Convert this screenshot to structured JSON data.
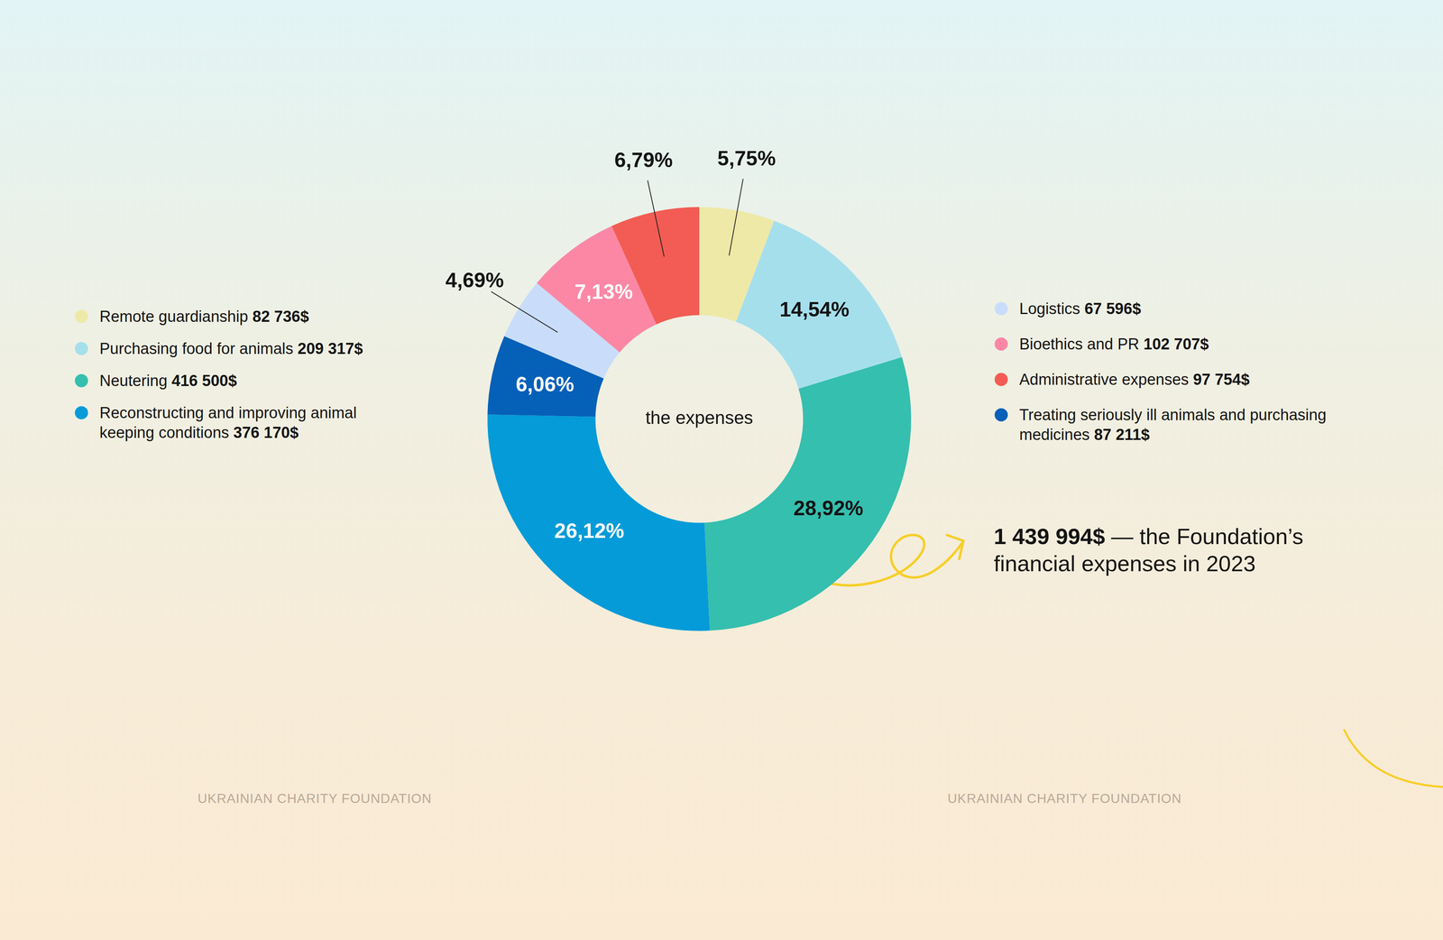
{
  "chart_data": {
    "type": "doughnut",
    "center_text": "the expenses",
    "categories": [
      "Remote guardianship",
      "Purchasing food for animals",
      "Neutering",
      "Reconstructing and improving animal keeping conditions",
      "Treating seriously ill animals and purchasing medicines",
      "Logistics",
      "Bioethics and PR",
      "Administrative expenses"
    ],
    "values": [
      5.75,
      14.54,
      28.92,
      26.12,
      6.06,
      4.69,
      7.13,
      6.79
    ],
    "value_labels": [
      "5,75%",
      "14,54%",
      "28,92%",
      "26,12%",
      "6,06%",
      "4,69%",
      "7,13%",
      "6,79%"
    ],
    "amounts": [
      82736,
      209317,
      416500,
      376170,
      87211,
      67596,
      102707,
      97754
    ],
    "amount_labels": [
      "82 736$",
      "209 317$",
      "416 500$",
      "376 170$",
      "87 211$",
      "67 596$",
      "102 707$",
      "97 754$"
    ],
    "colors": [
      "#eee9a7",
      "#a6dfec",
      "#35bfae",
      "#049bd8",
      "#0560b8",
      "#c9ddfa",
      "#fb87a5",
      "#f25c54"
    ],
    "data_labels": true
  },
  "total": {
    "value": 1439994,
    "label": "1 439 994$",
    "text": "— the Foundation’s financial expenses in 2023"
  },
  "footer": [
    "UKRAINIAN CHARITY FOUNDATION",
    "UKRAINIAN CHARITY FOUNDATION"
  ]
}
